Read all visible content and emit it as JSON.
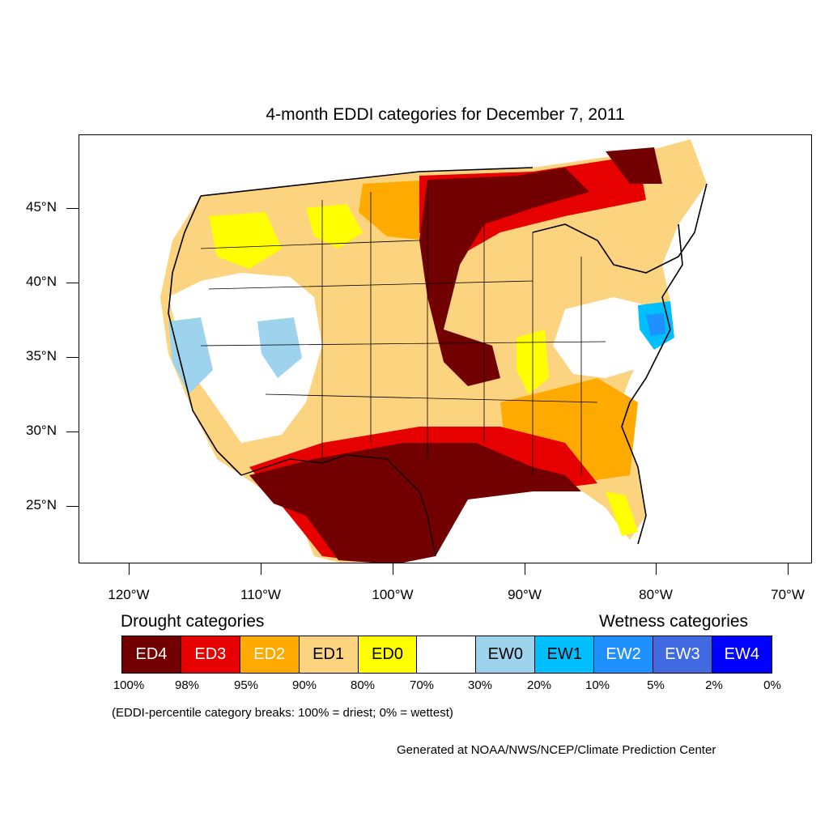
{
  "title": "4-month EDDI categories for December 7, 2011",
  "lat_labels": [
    "45°N",
    "40°N",
    "35°N",
    "30°N",
    "25°N"
  ],
  "lon_labels": [
    "120°W",
    "110°W",
    "100°W",
    "90°W",
    "80°W",
    "70°W"
  ],
  "legend": {
    "drought_heading": "Drought categories",
    "wetness_heading": "Wetness categories",
    "categories": [
      {
        "label": "ED4",
        "color": "#730000",
        "text_color": "#ffffff"
      },
      {
        "label": "ED3",
        "color": "#e60000",
        "text_color": "#ffffff"
      },
      {
        "label": "ED2",
        "color": "#ffaa00",
        "text_color": "#ffffff"
      },
      {
        "label": "ED1",
        "color": "#fcd37f",
        "text_color": "#000000"
      },
      {
        "label": "ED0",
        "color": "#ffff00",
        "text_color": "#000000"
      },
      {
        "label": "",
        "color": "#ffffff",
        "text_color": "#000000"
      },
      {
        "label": "EW0",
        "color": "#9ed3ee",
        "text_color": "#000000"
      },
      {
        "label": "EW1",
        "color": "#00bfff",
        "text_color": "#000000"
      },
      {
        "label": "EW2",
        "color": "#1e90ff",
        "text_color": "#ffffff"
      },
      {
        "label": "EW3",
        "color": "#4169e1",
        "text_color": "#ffffff"
      },
      {
        "label": "EW4",
        "color": "#0000ff",
        "text_color": "#ffffff"
      }
    ],
    "percentiles": [
      "100%",
      "98%",
      "95%",
      "90%",
      "80%",
      "70%",
      "30%",
      "20%",
      "10%",
      "5%",
      "2%",
      "0%"
    ]
  },
  "note": "(EDDI-percentile category breaks: 100% = driest; 0% = wettest)",
  "credit": "Generated at NOAA/NWS/NCEP/Climate Prediction Center"
}
